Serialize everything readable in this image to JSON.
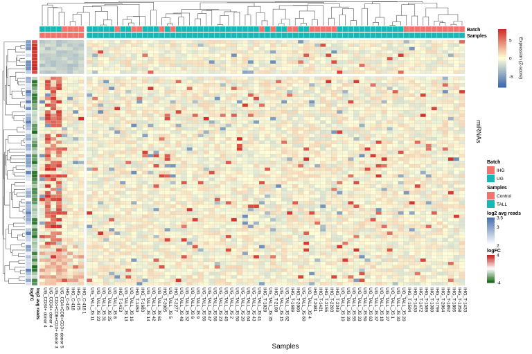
{
  "chart_data": {
    "type": "heatmap",
    "title": "",
    "xlabel": "Samples",
    "ylabel": "miRNAs",
    "n_rows": 72,
    "annotation_tracks": [
      "Batch",
      "Samples"
    ],
    "row_annotation_tracks": [
      "logFC",
      "log2 avg reads"
    ],
    "columns": [
      "UG_CD34+ donor 4",
      "UG_CD34+ donor 4",
      "UG_CD4+CD8+CD3+ donor 3",
      "UG_CD4+CD8+CD3+ donor 5",
      "IHG_C-435",
      "IHG_C-418",
      "IHG_C-475",
      "IHG_C-418 1",
      "UG_TALL_JS 11",
      "UG_TALL_JS 22",
      "UG_TALL_JS 31",
      "UG_TALL_JS 25",
      "UG_TALL_JS 8",
      "IHG_T-1413",
      "UG_TALL_JS 13",
      "UG_TALL_JS 16",
      "IHG_T-1450",
      "IHG_T-1683",
      "UG_TALL_JS 14",
      "UG_TALL_JS 42",
      "UG_TALL_JS 61",
      "IHG_T-2005",
      "UG_TALL_JS 5",
      "IHG_T-2277",
      "UG_TALL_JS 48",
      "UG_TALL_JS 32",
      "UG_TALL_JS 6",
      "UG_TALL_JS 9",
      "UG_TALL_JS 59",
      "UG_TALL_JS 47",
      "UG_TALL_JS 56",
      "UG_TALL_JS 23",
      "UG_TALL_JS 45",
      "UG_TALL_JS 2",
      "UG_TALL_JS 50",
      "UG_TALL_JS 20",
      "UG_TALL_JS 64",
      "UG_TALL_JS 43",
      "UG_TALL_JS 41",
      "IHG_T-1828",
      "UG_TALL_JS 35",
      "IHG_T-2108",
      "UG_TALL_JS 15",
      "UG_TALL_JS 62",
      "IHG_T-1689",
      "IHG_T-2000",
      "UG_TALL_JS 60",
      "UG_TALL_JS 4",
      "IHG_T-2081",
      "IHG_T-1421",
      "IHG_T-2155",
      "IHG_T-2203",
      "IHG_T-2349",
      "UG_TALL_JS 10",
      "UG_TALL_JS 39",
      "UG_TALL_JS 55",
      "UG_TALL_JS 33",
      "UG_TALL_JS 59",
      "UG_TALL_JS 63",
      "UG_TALL_JS 37",
      "UG_TALL_JS 18",
      "UG_TALL_JS 27",
      "UG_TALL_JS 1",
      "UG_TALL_JS 30",
      "UG_TALL_JS 20",
      "IHG_T-1504",
      "IHG_T-1430",
      "IHG_T-1472",
      "IHG_T-1589",
      "IHG_T-1380",
      "IHG_T-1799",
      "IHG_T-2064",
      "IHG_T-1892",
      "IHG_T-1895",
      "IHG_T-1358",
      "IHG_T-1433"
    ],
    "batch": [
      "UG",
      "UG",
      "UG",
      "UG",
      "IHG",
      "IHG",
      "IHG",
      "IHG",
      "UG",
      "UG",
      "UG",
      "UG",
      "UG",
      "IHG",
      "UG",
      "UG",
      "IHG",
      "IHG",
      "UG",
      "UG",
      "UG",
      "IHG",
      "UG",
      "IHG",
      "UG",
      "UG",
      "UG",
      "UG",
      "UG",
      "UG",
      "UG",
      "UG",
      "UG",
      "UG",
      "UG",
      "UG",
      "UG",
      "UG",
      "UG",
      "IHG",
      "UG",
      "IHG",
      "UG",
      "UG",
      "IHG",
      "IHG",
      "UG",
      "UG",
      "IHG",
      "IHG",
      "IHG",
      "IHG",
      "IHG",
      "UG",
      "UG",
      "UG",
      "UG",
      "UG",
      "UG",
      "UG",
      "UG",
      "UG",
      "UG",
      "UG",
      "UG",
      "IHG",
      "IHG",
      "IHG",
      "IHG",
      "IHG",
      "IHG",
      "IHG",
      "IHG",
      "IHG",
      "IHG",
      "IHG"
    ],
    "sample_group": [
      "Control",
      "Control",
      "Control",
      "Control",
      "Control",
      "Control",
      "Control",
      "Control",
      "TALL",
      "TALL",
      "TALL",
      "TALL",
      "TALL",
      "TALL",
      "TALL",
      "TALL",
      "TALL",
      "TALL",
      "TALL",
      "TALL",
      "TALL",
      "TALL",
      "TALL",
      "TALL",
      "TALL",
      "TALL",
      "TALL",
      "TALL",
      "TALL",
      "TALL",
      "TALL",
      "TALL",
      "TALL",
      "TALL",
      "TALL",
      "TALL",
      "TALL",
      "TALL",
      "TALL",
      "TALL",
      "TALL",
      "TALL",
      "TALL",
      "TALL",
      "TALL",
      "TALL",
      "TALL",
      "TALL",
      "TALL",
      "TALL",
      "TALL",
      "TALL",
      "TALL",
      "TALL",
      "TALL",
      "TALL",
      "TALL",
      "TALL",
      "TALL",
      "TALL",
      "TALL",
      "TALL",
      "TALL",
      "TALL",
      "TALL",
      "TALL",
      "TALL",
      "TALL",
      "TALL",
      "TALL",
      "TALL",
      "TALL",
      "TALL",
      "TALL",
      "TALL",
      "TALL"
    ],
    "row_splits": [
      10
    ],
    "col_splits": [
      8
    ],
    "legends": {
      "expression": {
        "title": "Expression (Z-score)",
        "ticks": [
          5,
          0,
          -5
        ],
        "range": [
          -8,
          8
        ],
        "colors": [
          "#3c68b0",
          "#ffffd8",
          "#d42d27"
        ]
      },
      "batch": {
        "title": "Batch",
        "items": [
          {
            "label": "IHG",
            "color": "#f2736b"
          },
          {
            "label": "UG",
            "color": "#14b8b4"
          }
        ]
      },
      "samples": {
        "title": "Samples",
        "items": [
          {
            "label": "Control",
            "color": "#f2736b"
          },
          {
            "label": "TALL",
            "color": "#14b8b4"
          }
        ]
      },
      "reads": {
        "title": "log2 avg reads",
        "ticks": [
          3.5,
          3,
          2
        ],
        "range": [
          2,
          3.5
        ],
        "colors": [
          "#ffffff",
          "#1e4f9a"
        ]
      },
      "logfc": {
        "title": "logFC",
        "ticks": [
          4,
          0,
          -4
        ],
        "range": [
          -4,
          4
        ],
        "colors": [
          "#1a6b1a",
          "#ffffff",
          "#c7261f"
        ]
      }
    }
  }
}
